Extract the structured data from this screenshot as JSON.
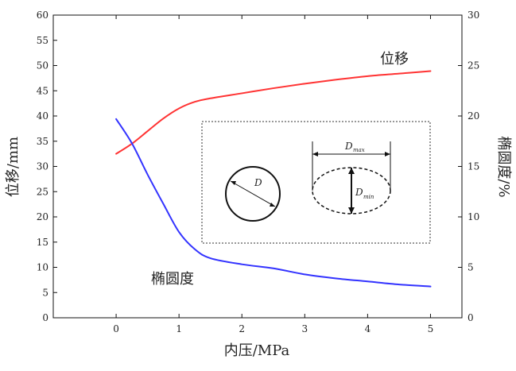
{
  "chart_data": {
    "type": "line",
    "title": "",
    "xlabel": "内压/MPa",
    "ylabel_left": "位移/mm",
    "ylabel_right": "椭圆度/%",
    "xlim": [
      -1,
      5.5
    ],
    "ylim_left": [
      0,
      60
    ],
    "ylim_right": [
      0,
      30
    ],
    "x_ticks": [
      "0",
      "1",
      "2",
      "3",
      "4",
      "5"
    ],
    "y_ticks_left": [
      "0",
      "5",
      "10",
      "15",
      "20",
      "25",
      "30",
      "35",
      "40",
      "45",
      "50",
      "55",
      "60"
    ],
    "y_ticks_right": [
      "0",
      "5",
      "10",
      "15",
      "20",
      "25",
      "30"
    ],
    "grid": false,
    "series": [
      {
        "name": "位移",
        "axis": "left",
        "color": "#ff3333",
        "x": [
          0,
          0.25,
          0.5,
          0.75,
          1.0,
          1.25,
          1.5,
          2.0,
          2.5,
          3.0,
          3.5,
          4.0,
          4.5,
          5.0
        ],
        "y": [
          32.5,
          34.5,
          37.0,
          39.5,
          41.5,
          42.8,
          43.5,
          44.5,
          45.5,
          46.4,
          47.2,
          47.9,
          48.4,
          48.9
        ]
      },
      {
        "name": "椭圆度",
        "axis": "right",
        "color": "#3333ff",
        "x": [
          0,
          0.25,
          0.5,
          0.75,
          1.0,
          1.25,
          1.5,
          2.0,
          2.5,
          3.0,
          3.5,
          4.0,
          4.5,
          5.0
        ],
        "y": [
          19.7,
          17.3,
          14.2,
          11.3,
          8.5,
          6.8,
          5.9,
          5.3,
          4.9,
          4.3,
          3.9,
          3.6,
          3.3,
          3.1
        ]
      }
    ],
    "annotations": {
      "series_label_displacement": "位移",
      "series_label_ovality": "椭圆度",
      "inset_label_d": "D",
      "inset_label_dmax": "D",
      "inset_label_dmax_sub": "max",
      "inset_label_dmin": "D",
      "inset_label_dmin_sub": "min"
    }
  }
}
